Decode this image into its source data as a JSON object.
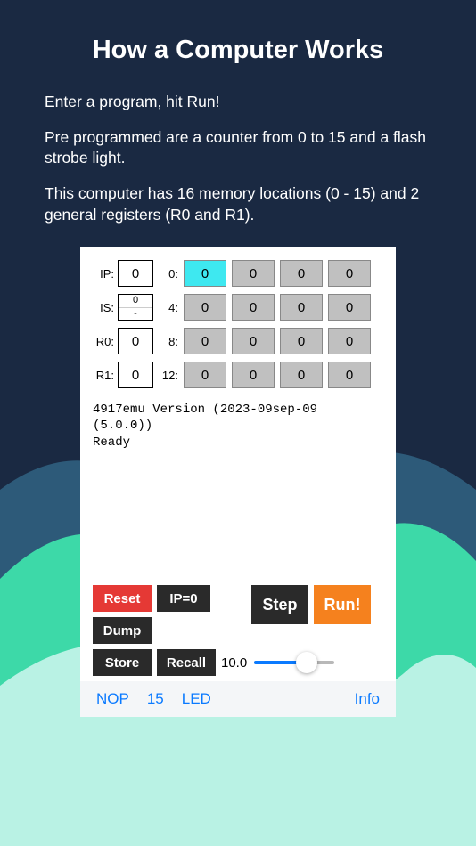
{
  "colors": {
    "page_bg": "#1a2942",
    "mountain_back": "#2d5a79",
    "mountain_mid": "#3dd9a8",
    "mountain_front": "#b9f2e4",
    "emulator_bg": "#ffffff",
    "mem_cell_bg": "#c0c0c0",
    "mem_cell_hl": "#3ee8f0",
    "btn_dark": "#2a2a2a",
    "btn_red": "#e53935",
    "btn_orange": "#f5811e",
    "link_blue": "#0a7aff",
    "bottombar_bg": "#f4f6f8"
  },
  "header": {
    "title": "How a Computer Works",
    "p1": "Enter a program, hit Run!",
    "p2": "Pre programmed are a counter from 0 to 15 and a flash strobe light.",
    "p3": "This computer has 16 memory locations (0 - 15) and 2 general registers (R0 and R1)."
  },
  "regs": {
    "ip_label": "IP:",
    "ip": "0",
    "is_label": "IS:",
    "is_top": "0",
    "is_bot": "-",
    "r0_label": "R0:",
    "r0": "0",
    "r1_label": "R1:",
    "r1": "0"
  },
  "mem": {
    "row_labels": [
      "0:",
      "4:",
      "8:",
      "12:"
    ],
    "cells": [
      [
        "0",
        "0",
        "0",
        "0"
      ],
      [
        "0",
        "0",
        "0",
        "0"
      ],
      [
        "0",
        "0",
        "0",
        "0"
      ],
      [
        "0",
        "0",
        "0",
        "0"
      ]
    ],
    "highlight_index": 0
  },
  "console": "4917emu Version (2023-09sep-09\n(5.0.0))\nReady",
  "controls": {
    "reset": "Reset",
    "ip0": "IP=0",
    "dump": "Dump",
    "store": "Store",
    "recall": "Recall",
    "step": "Step",
    "run": "Run!",
    "slider_value": "10.0",
    "slider_fill_pct": 65
  },
  "bottombar": {
    "nop": "NOP",
    "fifteen": "15",
    "led": "LED",
    "info": "Info"
  }
}
